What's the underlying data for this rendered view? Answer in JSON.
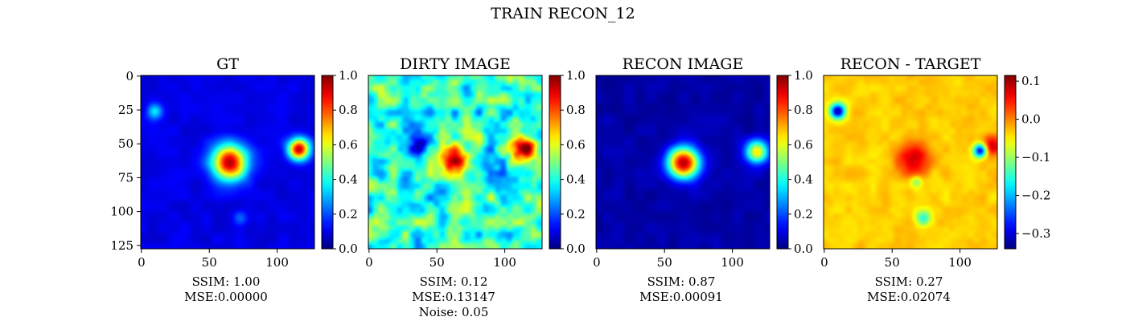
{
  "suptitle": "TRAIN RECON_12",
  "colormap": "jet",
  "chart_data": [
    {
      "type": "heatmap",
      "title": "GT",
      "xlim": [
        0,
        127
      ],
      "ylim": [
        127,
        0
      ],
      "xticks": [
        0,
        50,
        100
      ],
      "yticks": [
        0,
        25,
        50,
        75,
        100,
        125
      ],
      "colorbar": {
        "range": [
          0,
          1
        ],
        "ticks": [
          "0.0",
          "0.2",
          "0.4",
          "0.6",
          "0.8",
          "1.0"
        ]
      },
      "background": 0.1,
      "blobs": [
        {
          "x": 65,
          "y": 64,
          "sigma": 9,
          "amp": 0.85
        },
        {
          "x": 116,
          "y": 54,
          "sigma": 5.5,
          "amp": 0.85
        },
        {
          "x": 10,
          "y": 26,
          "sigma": 4,
          "amp": 0.25
        },
        {
          "x": 73,
          "y": 105,
          "sigma": 4,
          "amp": 0.1
        }
      ],
      "captions": [
        "SSIM: 1.00",
        "MSE:0.00000"
      ]
    },
    {
      "type": "heatmap",
      "title": "DIRTY IMAGE",
      "xlim": [
        0,
        127
      ],
      "ylim": [
        127,
        0
      ],
      "xticks": [
        0,
        50,
        100
      ],
      "colorbar": {
        "range": [
          0,
          1
        ],
        "ticks": [
          "0.0",
          "0.2",
          "0.4",
          "0.6",
          "0.8",
          "1.0"
        ]
      },
      "background": 0.42,
      "noise": 0.14,
      "blobs": [
        {
          "x": 64,
          "y": 62,
          "sigma": 7,
          "amp": 0.45
        },
        {
          "x": 115,
          "y": 53,
          "sigma": 6,
          "amp": 0.55
        },
        {
          "x": 38,
          "y": 51,
          "sigma": 7,
          "amp": -0.25
        },
        {
          "x": 85,
          "y": 68,
          "sigma": 8,
          "amp": -0.18
        }
      ],
      "captions": [
        "SSIM: 0.12",
        "MSE:0.13147",
        "Noise: 0.05"
      ]
    },
    {
      "type": "heatmap",
      "title": "RECON IMAGE",
      "xlim": [
        0,
        127
      ],
      "ylim": [
        127,
        0
      ],
      "xticks": [
        0,
        50,
        100
      ],
      "colorbar": {
        "range": [
          0,
          1
        ],
        "ticks": [
          "0.0",
          "0.2",
          "0.4",
          "0.6",
          "0.8",
          "1.0"
        ]
      },
      "background": 0.04,
      "blobs": [
        {
          "x": 64,
          "y": 64,
          "sigma": 8,
          "amp": 0.92
        },
        {
          "x": 118,
          "y": 56,
          "sigma": 6,
          "amp": 0.6
        }
      ],
      "captions": [
        "SSIM: 0.87",
        "MSE:0.00091"
      ]
    },
    {
      "type": "heatmap",
      "title": "RECON - TARGET",
      "xlim": [
        0,
        127
      ],
      "ylim": [
        127,
        0
      ],
      "xticks": [
        0,
        50,
        100
      ],
      "colorbar": {
        "range": [
          -0.34,
          0.115
        ],
        "ticks": [
          "−0.3",
          "−0.2",
          "−0.1",
          "0.0",
          "0.1"
        ]
      },
      "background": -0.035,
      "noise": 0.012,
      "blobs": [
        {
          "x": 10,
          "y": 26,
          "sigma": 4,
          "amp": -0.28
        },
        {
          "x": 66,
          "y": 62,
          "sigma": 8,
          "amp": 0.13
        },
        {
          "x": 64,
          "y": 64,
          "sigma": 4,
          "amp": -0.02
        },
        {
          "x": 115,
          "y": 55,
          "sigma": 3.5,
          "amp": -0.27
        },
        {
          "x": 123,
          "y": 52,
          "sigma": 5,
          "amp": 0.12
        },
        {
          "x": 73,
          "y": 105,
          "sigma": 4,
          "amp": -0.12
        },
        {
          "x": 68,
          "y": 78,
          "sigma": 3,
          "amp": -0.08
        }
      ],
      "captions": [
        "SSIM: 0.27",
        "MSE:0.02074"
      ]
    }
  ]
}
